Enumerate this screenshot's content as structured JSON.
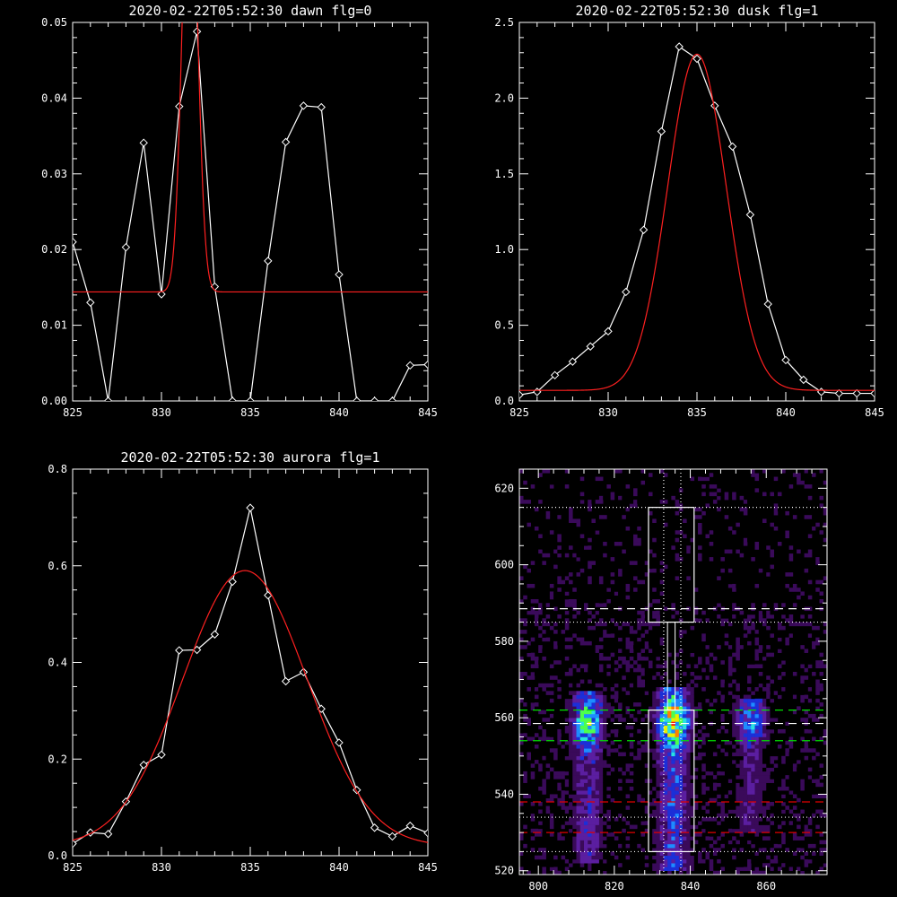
{
  "chart_data": [
    {
      "id": "dawn",
      "type": "line",
      "title": "2020-02-22T05:52:30 dawn flg=0",
      "xlim": [
        825,
        845
      ],
      "ylim": [
        0,
        0.05
      ],
      "xticks": [
        "825",
        "830",
        "835",
        "840",
        "845"
      ],
      "yticks": [
        "0.00",
        "0.01",
        "0.02",
        "0.03",
        "0.04",
        "0.05"
      ],
      "series": [
        {
          "x": [
            825,
            826,
            827,
            828,
            829,
            830,
            831,
            832,
            833,
            834,
            835,
            836,
            837,
            838,
            839,
            840,
            841,
            842,
            843,
            844,
            845
          ],
          "y": [
            0.021,
            0.013,
            0.0,
            0.0203,
            0.0341,
            0.0141,
            0.0389,
            0.0488,
            0.0151,
            0.0,
            0.0,
            0.0185,
            0.0342,
            0.039,
            0.0388,
            0.0167,
            0.0,
            0.0,
            0.0,
            0.0047,
            0.0048
          ],
          "color": "#ffffff",
          "markers": true
        },
        {
          "fit": "gaussian",
          "amplitude": 0.061,
          "center": 831.6,
          "sigma": 0.42,
          "offset": 0.0144,
          "color": "#ff2020"
        }
      ]
    },
    {
      "id": "dusk",
      "type": "line",
      "title": "2020-02-22T05:52:30 dusk flg=1",
      "xlim": [
        825,
        845
      ],
      "ylim": [
        0,
        2.5
      ],
      "xticks": [
        "825",
        "830",
        "835",
        "840",
        "845"
      ],
      "yticks": [
        "0.0",
        "0.5",
        "1.0",
        "1.5",
        "2.0",
        "2.5"
      ],
      "series": [
        {
          "x": [
            825,
            826,
            827,
            828,
            829,
            830,
            831,
            832,
            833,
            834,
            835,
            836,
            837,
            838,
            839,
            840,
            841,
            842,
            843,
            844,
            845
          ],
          "y": [
            0.04,
            0.06,
            0.17,
            0.26,
            0.36,
            0.46,
            0.72,
            1.13,
            1.78,
            2.34,
            2.26,
            1.95,
            1.68,
            1.23,
            0.64,
            0.27,
            0.14,
            0.06,
            0.05,
            0.05,
            0.05
          ],
          "color": "#ffffff",
          "markers": true
        },
        {
          "fit": "gaussian",
          "amplitude": 2.22,
          "center": 835.0,
          "sigma": 1.65,
          "offset": 0.07,
          "color": "#ff2020"
        }
      ]
    },
    {
      "id": "aurora",
      "type": "line",
      "title": "2020-02-22T05:52:30 aurora flg=1",
      "xlim": [
        825,
        845
      ],
      "ylim": [
        0,
        0.8
      ],
      "xticks": [
        "825",
        "830",
        "835",
        "840",
        "845"
      ],
      "yticks": [
        "0.0",
        "0.2",
        "0.4",
        "0.6",
        "0.8"
      ],
      "series": [
        {
          "x": [
            825,
            826,
            827,
            828,
            829,
            830,
            831,
            832,
            833,
            834,
            835,
            836,
            837,
            838,
            839,
            840,
            841,
            842,
            843,
            844,
            845
          ],
          "y": [
            0.025,
            0.048,
            0.045,
            0.112,
            0.188,
            0.209,
            0.425,
            0.426,
            0.458,
            0.567,
            0.72,
            0.539,
            0.361,
            0.38,
            0.304,
            0.234,
            0.136,
            0.058,
            0.04,
            0.062,
            0.047
          ],
          "color": "#ffffff",
          "markers": true
        },
        {
          "fit": "gaussian",
          "amplitude": 0.57,
          "center": 834.7,
          "sigma": 3.5,
          "offset": 0.02,
          "color": "#ff2020"
        }
      ]
    },
    {
      "id": "spectrogram",
      "type": "heatmap",
      "title": "",
      "xlim": [
        795,
        876
      ],
      "ylim": [
        519,
        625
      ],
      "xticks": [
        "800",
        "820",
        "840",
        "860"
      ],
      "yticks": [
        "520",
        "540",
        "560",
        "580",
        "600",
        "620"
      ],
      "colormap": [
        "#000000",
        "#3a0a5a",
        "#5b1ea0",
        "#1c2fd8",
        "#1e8cff",
        "#29e0e0",
        "#4dff4d",
        "#e8f000",
        "#ff8000",
        "#ff1010"
      ],
      "columns": [
        {
          "center": 813,
          "width": 5,
          "ymin": 522,
          "ymax": 567,
          "peak": 0.75,
          "hot": 559
        },
        {
          "center": 835.5,
          "width": 5,
          "ymin": 520,
          "ymax": 568,
          "peak": 1.0,
          "hot": 559
        },
        {
          "center": 856,
          "width": 5,
          "ymin": 530,
          "ymax": 565,
          "peak": 0.55,
          "hot": 560
        }
      ],
      "boxes": [
        {
          "x": [
            829,
            841
          ],
          "y": [
            585,
            615
          ]
        },
        {
          "x": [
            829,
            841
          ],
          "y": [
            525,
            562
          ]
        }
      ],
      "hlines": [
        {
          "y": 615,
          "color": "#ffffff",
          "style": "dotted"
        },
        {
          "y": 588.5,
          "color": "#ffffff",
          "style": "dashed"
        },
        {
          "y": 585,
          "color": "#ffffff",
          "style": "dotted"
        },
        {
          "y": 562,
          "color": "#00e000",
          "style": "dashed"
        },
        {
          "y": 558.5,
          "color": "#ffffff",
          "style": "dashed"
        },
        {
          "y": 554,
          "color": "#00e000",
          "style": "dashed"
        },
        {
          "y": 538,
          "color": "#e00000",
          "style": "dashed"
        },
        {
          "y": 534,
          "color": "#ffffff",
          "style": "dotted"
        },
        {
          "y": 530,
          "color": "#e00000",
          "style": "dashed"
        },
        {
          "y": 525,
          "color": "#ffffff",
          "style": "dotted"
        }
      ],
      "vlines": [
        {
          "x": 833,
          "color": "#ffffff",
          "style": "dotted"
        },
        {
          "x": 837.5,
          "color": "#ffffff",
          "style": "dotted"
        }
      ],
      "connector_x": [
        834,
        836
      ]
    }
  ]
}
